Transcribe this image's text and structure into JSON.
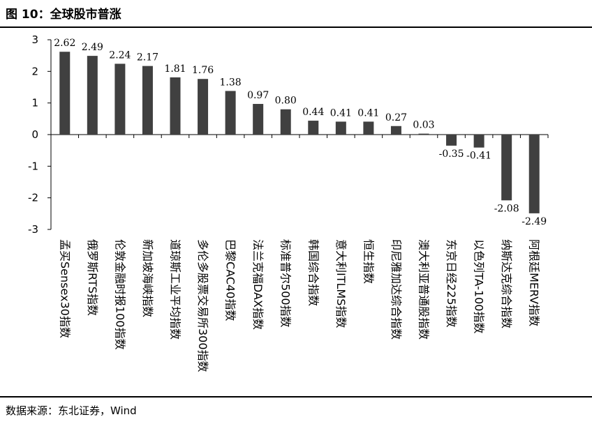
{
  "header": {
    "title": "图 10：全球股市普涨"
  },
  "footer": {
    "source": "数据来源：东北证券，Wind"
  },
  "chart_data": {
    "type": "bar",
    "title": "",
    "xlabel": "",
    "ylabel": "",
    "ylim": [
      -3,
      3
    ],
    "yticks": [
      -3,
      -2,
      -1,
      0,
      1,
      2,
      3
    ],
    "grid": false,
    "bar_color": "#404040",
    "categories": [
      "孟买Sensex30指数",
      "俄罗斯RTS指数",
      "伦敦金融时报100指数",
      "新加坡海峡指数",
      "道琼斯工业平均指数",
      "多伦多股票交易所300指数",
      "巴黎CAC40指数",
      "法兰克福DAX指数",
      "标准普尔500指数",
      "韩国综合指数",
      "意大利ITLMS指数",
      "恒生指数",
      "印尼雅加达综合指数",
      "澳大利亚普通股指数",
      "东京日经225指数",
      "以色列TA-100指数",
      "纳斯达克综合指数",
      "阿根廷MERV指数"
    ],
    "values": [
      2.62,
      2.49,
      2.24,
      2.17,
      1.81,
      1.76,
      1.38,
      0.97,
      0.8,
      0.44,
      0.41,
      0.41,
      0.27,
      0.03,
      -0.35,
      -0.41,
      -2.08,
      -2.49
    ],
    "value_labels": [
      "2.62",
      "2.49",
      "2.24",
      "2.17",
      "1.81",
      "1.76",
      "1.38",
      "0.97",
      "0.80",
      "0.44",
      "0.41",
      "0.41",
      "0.27",
      "0.03",
      "-0.35",
      "-0.41",
      "-2.08",
      "-2.49"
    ]
  }
}
